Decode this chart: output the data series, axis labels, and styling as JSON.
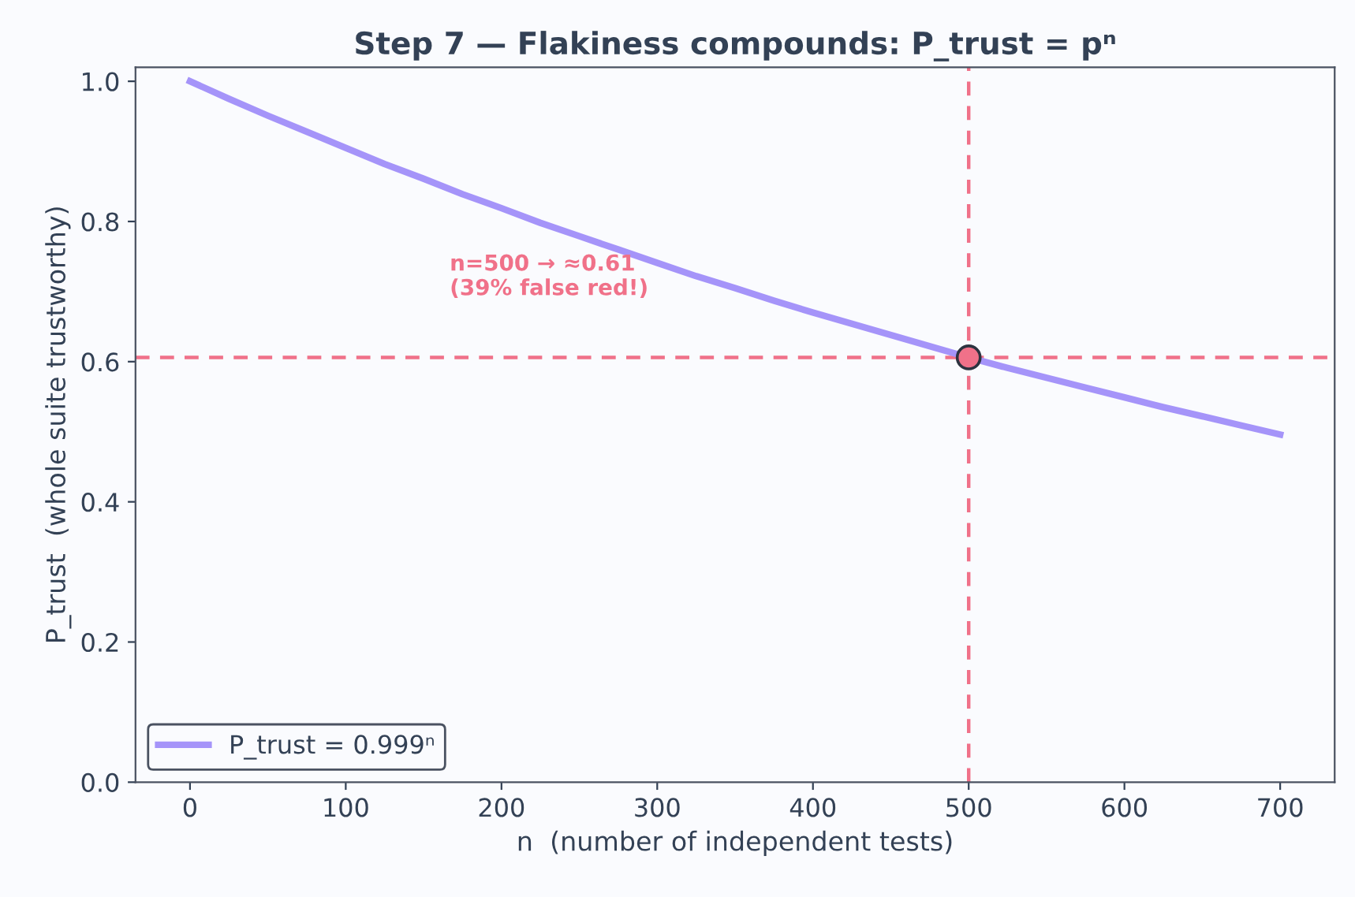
{
  "chart_data": {
    "type": "line",
    "title": "Step 7 — Flakiness compounds: P_trust = pⁿ",
    "xlabel": "n  (number of independent tests)",
    "ylabel": "P_trust  (whole suite trustworthy)",
    "x": [
      0,
      25,
      50,
      75,
      100,
      125,
      150,
      175,
      200,
      225,
      250,
      275,
      300,
      325,
      350,
      375,
      400,
      425,
      450,
      475,
      500,
      525,
      550,
      575,
      600,
      625,
      650,
      675,
      700
    ],
    "series": [
      {
        "name": "P_trust = 0.999ⁿ",
        "color": "#a594f9",
        "values": [
          1.0,
          0.975,
          0.951,
          0.928,
          0.905,
          0.882,
          0.861,
          0.839,
          0.819,
          0.798,
          0.779,
          0.76,
          0.741,
          0.722,
          0.705,
          0.687,
          0.67,
          0.654,
          0.638,
          0.622,
          0.606,
          0.591,
          0.577,
          0.563,
          0.549,
          0.535,
          0.522,
          0.509,
          0.496
        ]
      },
      {
        "type": "scatter",
        "color": "#f07189",
        "x": [
          500
        ],
        "values": [
          0.606
        ],
        "marker": "circle"
      }
    ],
    "ref_lines": [
      {
        "axis": "x",
        "value": 500,
        "color": "#f07189",
        "line_style": "dashed"
      },
      {
        "axis": "y",
        "value": 0.606,
        "color": "#f07189",
        "line_style": "dashed"
      }
    ],
    "annotations": [
      "n=500 → ≈0.61\n(39% false red!)"
    ],
    "xlim": [
      -35,
      735
    ],
    "ylim": [
      0,
      1.02
    ],
    "xticks": [
      0,
      100,
      200,
      300,
      400,
      500,
      600,
      700
    ],
    "yticks": [
      {
        "value": 0,
        "label": "0.0"
      },
      0.2,
      0.4,
      0.6,
      0.8,
      {
        "value": 1,
        "label": "1.0"
      }
    ],
    "grid": false,
    "legend": "bottom left",
    "marker": "none",
    "line_style": "solid"
  }
}
